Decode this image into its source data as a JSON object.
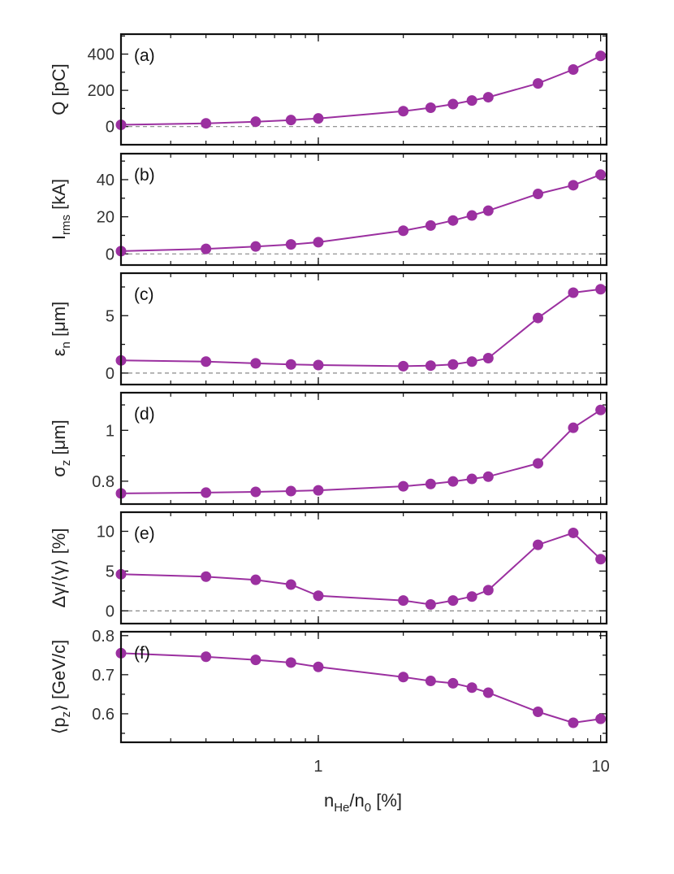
{
  "figure": {
    "xlabel_main": "n",
    "xlabel_sub": "He",
    "xlabel_mid": "/n",
    "xlabel_sub2": "0",
    "xlabel_tail": " [%]",
    "x_ticks": [
      "1",
      "10"
    ]
  },
  "colors": {
    "series": "#9b30a0",
    "zero_line": "#888888",
    "frame": "#111111",
    "tick_text": "#333333"
  },
  "chart_data": [
    {
      "type": "line",
      "panel": "(a)",
      "ylabel": "Q [pC]",
      "ylabel_parts": {
        "main": "Q [pC]",
        "sub": "",
        "tail": ""
      },
      "xscale": "log",
      "xlim": [
        0.2,
        10.5
      ],
      "ylim": [
        -100,
        510
      ],
      "yticks": [
        0,
        200,
        400
      ],
      "ytick_labels": [
        "0",
        "200",
        "400"
      ],
      "zero_line": true,
      "x": [
        0.2,
        0.4,
        0.6,
        0.8,
        1,
        2,
        2.5,
        3,
        3.5,
        4,
        6,
        8,
        10
      ],
      "values": [
        10,
        18,
        27,
        36,
        45,
        85,
        104,
        124,
        144,
        162,
        238,
        315,
        390
      ]
    },
    {
      "type": "line",
      "panel": "(b)",
      "ylabel": "I_rms [kA]",
      "ylabel_parts": {
        "main": "I",
        "sub": "rms",
        "tail": " [kA]"
      },
      "xscale": "log",
      "xlim": [
        0.2,
        10.5
      ],
      "ylim": [
        -6,
        54
      ],
      "yticks": [
        0,
        20,
        40
      ],
      "ytick_labels": [
        "0",
        "20",
        "40"
      ],
      "zero_line": true,
      "x": [
        0.2,
        0.4,
        0.6,
        0.8,
        1,
        2,
        2.5,
        3,
        3.5,
        4,
        6,
        8,
        10
      ],
      "values": [
        1.5,
        2.7,
        4.0,
        5.1,
        6.3,
        12.5,
        15.3,
        18.0,
        20.7,
        23.3,
        32.3,
        37.0,
        42.7
      ]
    },
    {
      "type": "line",
      "panel": "(c)",
      "ylabel": "ε_n [μm]",
      "ylabel_parts": {
        "main": "ε",
        "sub": "n",
        "tail": " [μm]"
      },
      "xscale": "log",
      "xlim": [
        0.2,
        10.5
      ],
      "ylim": [
        -1,
        8.7
      ],
      "yticks": [
        0,
        5
      ],
      "ytick_labels": [
        "0",
        "5"
      ],
      "zero_line": true,
      "x": [
        0.2,
        0.4,
        0.6,
        0.8,
        1,
        2,
        2.5,
        3,
        3.5,
        4,
        6,
        8,
        10
      ],
      "values": [
        1.1,
        1.0,
        0.85,
        0.75,
        0.7,
        0.6,
        0.65,
        0.75,
        1.0,
        1.3,
        4.8,
        7.0,
        7.3
      ]
    },
    {
      "type": "line",
      "panel": "(d)",
      "ylabel": "σ_z [μm]",
      "ylabel_parts": {
        "main": "σ",
        "sub": "z",
        "tail": " [μm]"
      },
      "xscale": "log",
      "xlim": [
        0.2,
        10.5
      ],
      "ylim": [
        0.71,
        1.148
      ],
      "yticks": [
        0.8,
        1
      ],
      "ytick_labels": [
        "0.8",
        "1"
      ],
      "zero_line": false,
      "x": [
        0.2,
        0.4,
        0.6,
        0.8,
        1,
        2,
        2.5,
        3,
        3.5,
        4,
        6,
        8,
        10
      ],
      "values": [
        0.752,
        0.755,
        0.758,
        0.761,
        0.764,
        0.78,
        0.789,
        0.799,
        0.809,
        0.818,
        0.87,
        1.01,
        1.08
      ]
    },
    {
      "type": "line",
      "panel": "(e)",
      "ylabel": "Δγ/⟨γ⟩ [%]",
      "ylabel_parts": {
        "main": "Δγ/⟨γ⟩ [%]",
        "sub": "",
        "tail": ""
      },
      "xscale": "log",
      "xlim": [
        0.2,
        10.5
      ],
      "ylim": [
        -1.6,
        12.4
      ],
      "yticks": [
        0,
        5,
        10
      ],
      "ytick_labels": [
        "0",
        "5",
        "10"
      ],
      "zero_line": true,
      "x": [
        0.2,
        0.4,
        0.6,
        0.8,
        1,
        2,
        2.5,
        3,
        3.5,
        4,
        6,
        8,
        10
      ],
      "values": [
        4.6,
        4.3,
        3.9,
        3.3,
        1.9,
        1.3,
        0.8,
        1.3,
        1.8,
        2.6,
        8.3,
        9.8,
        6.5
      ]
    },
    {
      "type": "line",
      "panel": "(f)",
      "ylabel": "⟨p_z⟩ [GeV/c]",
      "ylabel_parts": {
        "main": "⟨p",
        "sub": "z",
        "tail": "⟩ [GeV/c]"
      },
      "xscale": "log",
      "xlim": [
        0.2,
        10.5
      ],
      "ylim": [
        0.527,
        0.81
      ],
      "yticks": [
        0.6,
        0.7,
        0.8
      ],
      "ytick_labels": [
        "0.6",
        "0.7",
        "0.8"
      ],
      "zero_line": false,
      "x": [
        0.2,
        0.4,
        0.6,
        0.8,
        1,
        2,
        2.5,
        3,
        3.5,
        4,
        6,
        8,
        10
      ],
      "values": [
        0.755,
        0.746,
        0.738,
        0.731,
        0.72,
        0.694,
        0.684,
        0.678,
        0.667,
        0.654,
        0.605,
        0.577,
        0.587
      ]
    }
  ]
}
